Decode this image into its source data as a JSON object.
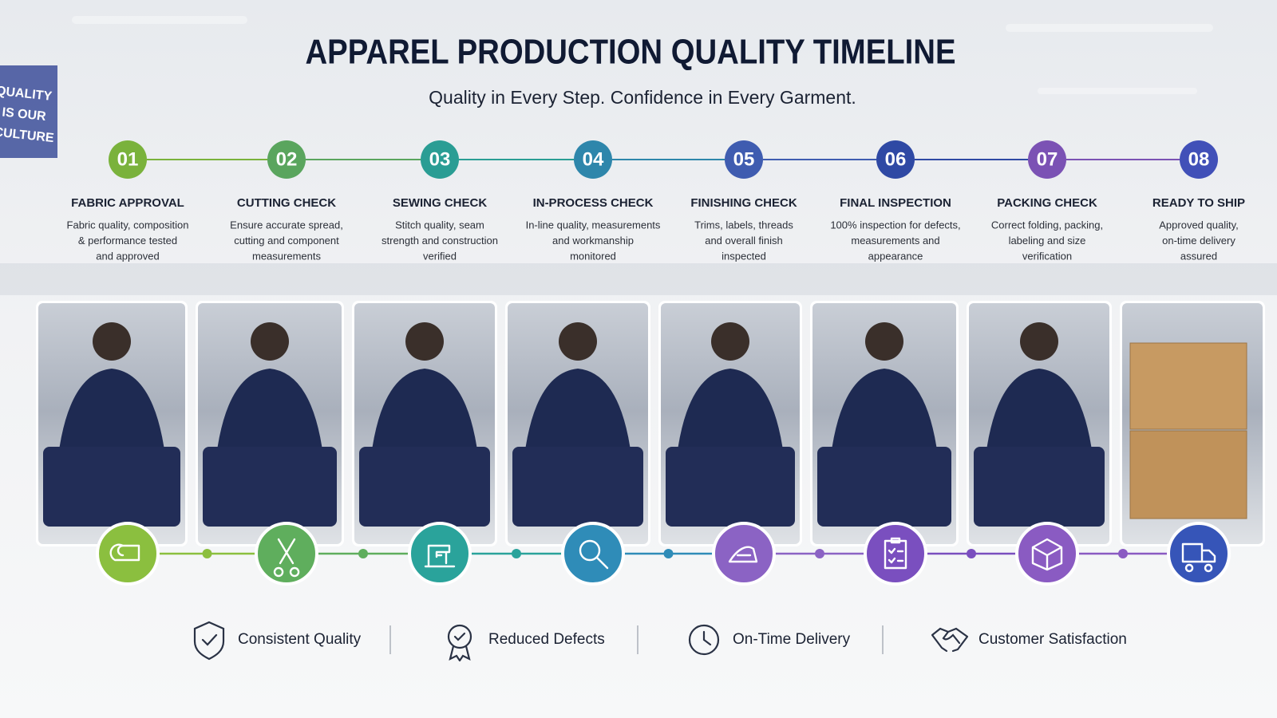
{
  "header": {
    "title": "APPAREL PRODUCTION QUALITY TIMELINE",
    "subtitle": "Quality in Every Step. Confidence in Every Garment."
  },
  "sign": {
    "lines": [
      "QUALITY",
      "IS OUR",
      "CULTURE"
    ]
  },
  "steps": [
    {
      "number": "01",
      "title": "FABRIC APPROVAL",
      "description": [
        "Fabric quality, composition",
        "& performance tested",
        "and approved"
      ]
    },
    {
      "number": "02",
      "title": "CUTTING CHECK",
      "description": [
        "Ensure accurate spread,",
        "cutting and component",
        "measurements"
      ]
    },
    {
      "number": "03",
      "title": "SEWING CHECK",
      "description": [
        "Stitch quality, seam",
        "strength and construction",
        "verified"
      ]
    },
    {
      "number": "04",
      "title": "IN-PROCESS CHECK",
      "description": [
        "In-line quality, measurements",
        "and workmanship",
        "monitored"
      ]
    },
    {
      "number": "05",
      "title": "FINISHING CHECK",
      "description": [
        "Trims, labels, threads",
        "and overall finish",
        "inspected"
      ]
    },
    {
      "number": "06",
      "title": "FINAL INSPECTION",
      "description": [
        "100% inspection for defects,",
        "measurements and",
        "appearance"
      ]
    },
    {
      "number": "07",
      "title": "PACKING CHECK",
      "description": [
        "Correct folding, packing,",
        "labeling and size",
        "verification"
      ]
    },
    {
      "number": "08",
      "title": "READY TO SHIP",
      "description": [
        "Approved quality,",
        "on-time delivery",
        "assured"
      ]
    }
  ],
  "benefits": [
    "Consistent Quality",
    "Reduced Defects",
    "On-Time Delivery",
    "Customer Satisfaction"
  ]
}
